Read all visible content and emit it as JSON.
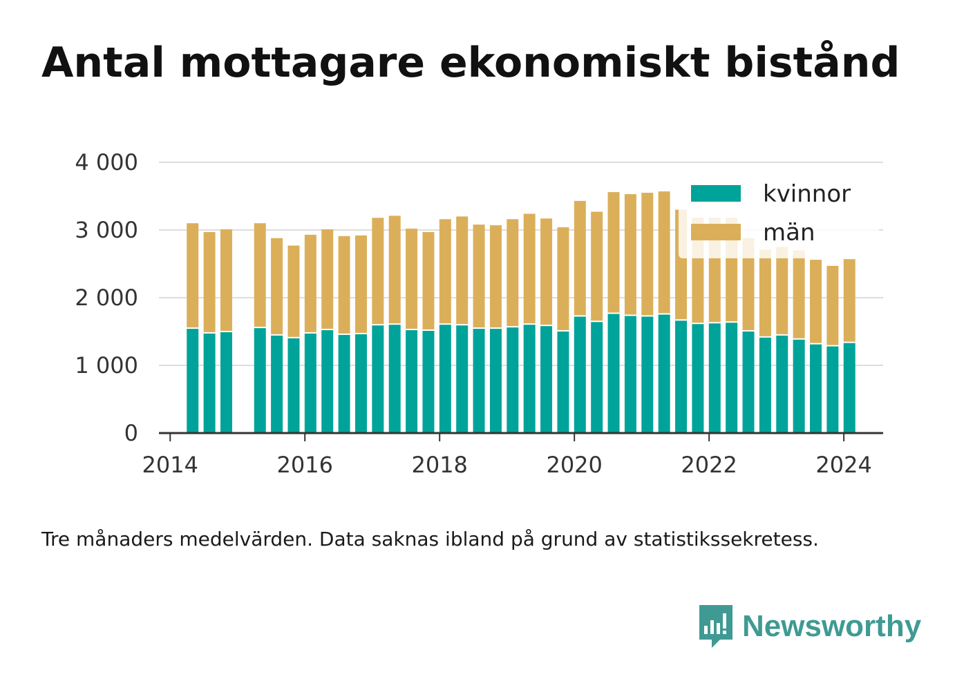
{
  "title": "Antal mottagare ekonomiskt bistånd",
  "note": "Tre månaders medelvärden. Data saknas ibland på grund av statistikssekretess.",
  "brand": {
    "name": "Newsworthy",
    "logo_icon": "bar-chart-speech-bubble-icon"
  },
  "colors": {
    "kvinnor": "#00a39a",
    "man": "#dbaf5a",
    "grid": "#dddddd",
    "axis": "#333333",
    "brand": "#3f9a93"
  },
  "chart_data": {
    "type": "bar",
    "stacked": true,
    "x_ticks": [
      "2014",
      "2016",
      "2018",
      "2020",
      "2022",
      "2024"
    ],
    "y_ticks": [
      "0",
      "1 000",
      "2 000",
      "3 000",
      "4 000"
    ],
    "ylim": [
      0,
      4000
    ],
    "xlim": [
      "2013-11",
      "2024-08"
    ],
    "grid": "horizontal",
    "legend": "top-right",
    "x": [
      "2014-05",
      "2014-08",
      "2014-11",
      "2015-02",
      "2015-05",
      "2015-08",
      "2015-11",
      "2016-02",
      "2016-05",
      "2016-08",
      "2016-11",
      "2017-02",
      "2017-05",
      "2017-08",
      "2017-11",
      "2018-02",
      "2018-05",
      "2018-08",
      "2018-11",
      "2019-02",
      "2019-05",
      "2019-08",
      "2019-11",
      "2020-02",
      "2020-05",
      "2020-08",
      "2020-11",
      "2021-02",
      "2021-05",
      "2021-08",
      "2021-11",
      "2022-02",
      "2022-05",
      "2022-08",
      "2022-11",
      "2023-02",
      "2023-05",
      "2023-08",
      "2023-11",
      "2024-02"
    ],
    "series": [
      {
        "name": "kvinnor",
        "values": [
          1540,
          1470,
          1490,
          null,
          1550,
          1440,
          1400,
          1470,
          1520,
          1450,
          1460,
          1590,
          1600,
          1520,
          1510,
          1600,
          1590,
          1540,
          1540,
          1560,
          1600,
          1580,
          1500,
          1720,
          1640,
          1760,
          1730,
          1720,
          1750,
          1660,
          1610,
          1620,
          1630,
          1500,
          1410,
          1440,
          1380,
          1310,
          1280,
          1330
        ]
      },
      {
        "name": "män",
        "values": [
          1560,
          1500,
          1520,
          null,
          1550,
          1440,
          1370,
          1460,
          1490,
          1460,
          1460,
          1590,
          1610,
          1500,
          1460,
          1560,
          1610,
          1540,
          1530,
          1600,
          1640,
          1590,
          1540,
          1710,
          1630,
          1800,
          1800,
          1830,
          1820,
          1640,
          1570,
          1560,
          1550,
          1380,
          1300,
          1310,
          1320,
          1250,
          1190,
          1240
        ]
      }
    ]
  }
}
